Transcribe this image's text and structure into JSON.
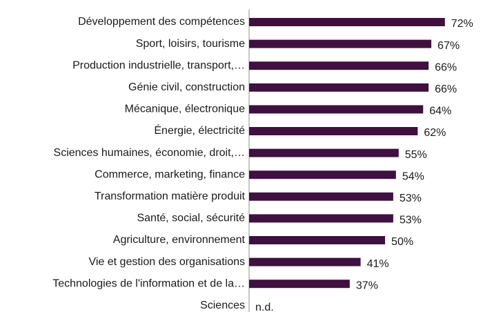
{
  "chart_data": {
    "type": "bar",
    "orientation": "horizontal",
    "categories": [
      "Développement des compétences",
      "Sport, loisirs, tourisme",
      "Production industrielle, transport,…",
      "Génie civil, construction",
      "Mécanique, électronique",
      "Énergie, électricité",
      "Sciences humaines, économie, droit,…",
      "Commerce, marketing, finance",
      "Transformation matière produit",
      "Santé, social, sécurité",
      "Agriculture, environnement",
      "Vie et gestion des organisations",
      "Technologies de l'information et de la…",
      "Sciences"
    ],
    "values": [
      72,
      67,
      66,
      66,
      64,
      62,
      55,
      54,
      53,
      53,
      50,
      41,
      37,
      null
    ],
    "value_labels": [
      "72%",
      "67%",
      "66%",
      "66%",
      "64%",
      "62%",
      "55%",
      "54%",
      "53%",
      "53%",
      "50%",
      "41%",
      "37%",
      "n.d."
    ],
    "color": "#3f1040",
    "xlim": [
      0,
      85
    ]
  }
}
